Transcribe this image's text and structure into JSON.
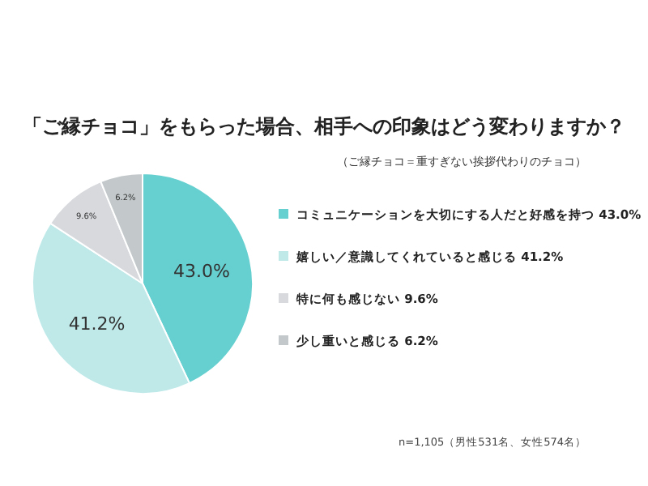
{
  "chart_data": {
    "type": "pie",
    "title": "「ご縁チョコ」をもらった場合、相手への印象はどう変わりますか？",
    "subtitle": "（ご縁チョコ＝重すぎない挨拶代わりのチョコ）",
    "categories": [
      "コミュニケーションを大切にする人だと好感を持つ 43.0%",
      "嬉しい／意識してくれていると感じる 41.2%",
      "特に何も感じない 9.6%",
      "少し重いと感じる 6.2%"
    ],
    "values": [
      43.0,
      41.2,
      9.6,
      6.2
    ],
    "value_labels": [
      "43.0%",
      "41.2%",
      "9.6%",
      "6.2%"
    ],
    "colors": [
      "#66cfcf",
      "#bfe9e9",
      "#d7d9dd",
      "#c3c9cb"
    ],
    "data_labels": true,
    "legend": "right",
    "annotations": [
      "n=1,105（男性531名、女性574名）"
    ]
  }
}
